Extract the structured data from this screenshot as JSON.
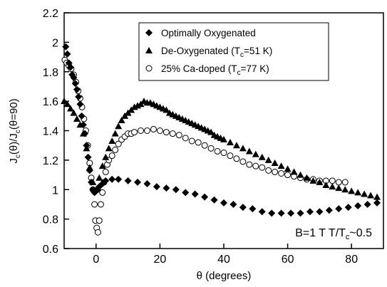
{
  "chart_data": {
    "type": "scatter",
    "xlabel": "θ (degrees)",
    "ylabel_parts": [
      "J",
      "c",
      "(θ)/J",
      "c",
      "(θ=90)"
    ],
    "xlim": [
      -10,
      90
    ],
    "ylim": [
      0.6,
      2.2
    ],
    "x_ticks": [
      0,
      20,
      40,
      60,
      80
    ],
    "y_ticks": [
      0.6,
      0.8,
      1,
      1.2,
      1.4,
      1.6,
      1.8,
      2,
      2.2
    ],
    "x_tick_labels": [
      "0",
      "20",
      "40",
      "60",
      "80"
    ],
    "y_tick_labels": [
      "0.6",
      "0.8",
      "1",
      "1.2",
      "1.4",
      "1.6",
      "1.8",
      "2",
      "2.2"
    ],
    "grid": false,
    "legend_position": "top-right",
    "annotation_parts": [
      "B=1 T  T/T",
      "c",
      "~0.5"
    ],
    "series": [
      {
        "name_parts": [
          "Optimally Oxygenated"
        ],
        "marker": "diamond",
        "color": "#000000",
        "points": [
          [
            -9.5,
            1.97
          ],
          [
            -9,
            1.92
          ],
          [
            -8.5,
            1.86
          ],
          [
            -8,
            1.83
          ],
          [
            -7.5,
            1.78
          ],
          [
            -7,
            1.76
          ],
          [
            -6.5,
            1.72
          ],
          [
            -6,
            1.68
          ],
          [
            -5.5,
            1.63
          ],
          [
            -5,
            1.58
          ],
          [
            -4.5,
            1.5
          ],
          [
            -4,
            1.44
          ],
          [
            -3.5,
            1.38
          ],
          [
            -3,
            1.3
          ],
          [
            -2.5,
            1.22
          ],
          [
            -2,
            1.13
          ],
          [
            -1.5,
            1.05
          ],
          [
            -1,
            1.0
          ],
          [
            -0.5,
            0.98
          ],
          [
            0,
            0.99
          ],
          [
            0.5,
            1.0
          ],
          [
            1,
            1.02
          ],
          [
            2,
            1.04
          ],
          [
            3,
            1.06
          ],
          [
            5,
            1.07
          ],
          [
            7,
            1.07
          ],
          [
            10,
            1.06
          ],
          [
            13,
            1.05
          ],
          [
            16,
            1.04
          ],
          [
            19,
            1.02
          ],
          [
            22,
            1.01
          ],
          [
            25,
            1.0
          ],
          [
            28,
            0.98
          ],
          [
            31,
            0.97
          ],
          [
            34,
            0.95
          ],
          [
            37,
            0.93
          ],
          [
            40,
            0.91
          ],
          [
            43,
            0.9
          ],
          [
            46,
            0.88
          ],
          [
            49,
            0.87
          ],
          [
            52,
            0.85
          ],
          [
            55,
            0.84
          ],
          [
            58,
            0.84
          ],
          [
            61,
            0.84
          ],
          [
            64,
            0.84
          ],
          [
            67,
            0.85
          ],
          [
            70,
            0.85
          ],
          [
            73,
            0.86
          ],
          [
            76,
            0.87
          ],
          [
            79,
            0.88
          ],
          [
            82,
            0.89
          ],
          [
            85,
            0.9
          ],
          [
            88,
            0.91
          ]
        ]
      },
      {
        "name_parts": [
          "De-Oxygenated (T",
          "c",
          "=51 K)"
        ],
        "marker": "triangle",
        "color": "#000000",
        "points": [
          [
            -10,
            1.6
          ],
          [
            -9,
            1.58
          ],
          [
            -8,
            1.55
          ],
          [
            -7,
            1.52
          ],
          [
            -6,
            1.48
          ],
          [
            -5,
            1.44
          ],
          [
            -4,
            1.38
          ],
          [
            -3,
            1.28
          ],
          [
            -2,
            1.15
          ],
          [
            -1,
            1.05
          ],
          [
            0,
            1.0
          ],
          [
            1,
            1.08
          ],
          [
            2,
            1.16
          ],
          [
            3,
            1.22
          ],
          [
            4,
            1.28
          ],
          [
            5,
            1.33
          ],
          [
            6,
            1.38
          ],
          [
            7,
            1.43
          ],
          [
            8,
            1.47
          ],
          [
            9,
            1.5
          ],
          [
            10,
            1.52
          ],
          [
            11,
            1.54
          ],
          [
            12,
            1.56
          ],
          [
            13,
            1.57
          ],
          [
            14,
            1.58
          ],
          [
            15,
            1.6
          ],
          [
            16,
            1.59
          ],
          [
            17,
            1.59
          ],
          [
            18,
            1.58
          ],
          [
            19,
            1.57
          ],
          [
            20,
            1.56
          ],
          [
            21,
            1.55
          ],
          [
            22,
            1.54
          ],
          [
            23,
            1.52
          ],
          [
            24,
            1.51
          ],
          [
            25,
            1.5
          ],
          [
            26,
            1.49
          ],
          [
            27,
            1.48
          ],
          [
            28,
            1.47
          ],
          [
            29,
            1.46
          ],
          [
            30,
            1.45
          ],
          [
            31,
            1.44
          ],
          [
            32,
            1.43
          ],
          [
            33,
            1.42
          ],
          [
            34,
            1.41
          ],
          [
            35,
            1.4
          ],
          [
            36,
            1.39
          ],
          [
            37,
            1.37
          ],
          [
            38,
            1.36
          ],
          [
            39,
            1.35
          ],
          [
            40,
            1.34
          ],
          [
            42,
            1.32
          ],
          [
            44,
            1.3
          ],
          [
            46,
            1.28
          ],
          [
            48,
            1.26
          ],
          [
            50,
            1.24
          ],
          [
            52,
            1.22
          ],
          [
            54,
            1.2
          ],
          [
            56,
            1.18
          ],
          [
            58,
            1.16
          ],
          [
            60,
            1.14
          ],
          [
            62,
            1.12
          ],
          [
            64,
            1.1
          ],
          [
            66,
            1.08
          ],
          [
            68,
            1.06
          ],
          [
            70,
            1.05
          ],
          [
            72,
            1.03
          ],
          [
            74,
            1.02
          ],
          [
            76,
            1.01
          ],
          [
            78,
            1.0
          ],
          [
            80,
            0.99
          ],
          [
            82,
            0.98
          ],
          [
            84,
            0.97
          ],
          [
            86,
            0.96
          ],
          [
            88,
            0.95
          ]
        ]
      },
      {
        "name_parts": [
          "25% Ca-doped (T",
          "c",
          "=77 K)"
        ],
        "marker": "circle-open",
        "color": "#000000",
        "points": [
          [
            -9.8,
            1.88
          ],
          [
            -9.2,
            1.86
          ],
          [
            -8.5,
            1.84
          ],
          [
            -7.8,
            1.82
          ],
          [
            -7,
            1.78
          ],
          [
            -6.3,
            1.73
          ],
          [
            -5.6,
            1.67
          ],
          [
            -5,
            1.62
          ],
          [
            -4.4,
            1.56
          ],
          [
            -3.8,
            1.48
          ],
          [
            -3.2,
            1.4
          ],
          [
            -2.6,
            1.3
          ],
          [
            -2,
            1.18
          ],
          [
            -1.5,
            1.08
          ],
          [
            -1,
            1.0
          ],
          [
            -0.5,
            0.9
          ],
          [
            -0.2,
            0.79
          ],
          [
            0.2,
            0.74
          ],
          [
            0.6,
            0.71
          ],
          [
            1,
            0.79
          ],
          [
            1.5,
            0.9
          ],
          [
            2,
            0.98
          ],
          [
            2.5,
            1.05
          ],
          [
            3,
            1.12
          ],
          [
            3.5,
            1.17
          ],
          [
            4,
            1.2
          ],
          [
            5,
            1.23
          ],
          [
            6,
            1.27
          ],
          [
            7,
            1.31
          ],
          [
            8,
            1.34
          ],
          [
            9,
            1.36
          ],
          [
            10,
            1.38
          ],
          [
            11,
            1.38
          ],
          [
            12,
            1.39
          ],
          [
            14,
            1.4
          ],
          [
            16,
            1.4
          ],
          [
            18,
            1.41
          ],
          [
            20,
            1.4
          ],
          [
            22,
            1.39
          ],
          [
            24,
            1.38
          ],
          [
            26,
            1.37
          ],
          [
            28,
            1.35
          ],
          [
            30,
            1.33
          ],
          [
            32,
            1.32
          ],
          [
            34,
            1.3
          ],
          [
            36,
            1.28
          ],
          [
            38,
            1.26
          ],
          [
            40,
            1.25
          ],
          [
            42,
            1.23
          ],
          [
            44,
            1.21
          ],
          [
            46,
            1.19
          ],
          [
            48,
            1.17
          ],
          [
            50,
            1.16
          ],
          [
            52,
            1.15
          ],
          [
            54,
            1.13
          ],
          [
            56,
            1.12
          ],
          [
            58,
            1.11
          ],
          [
            60,
            1.1
          ],
          [
            62,
            1.09
          ],
          [
            64,
            1.08
          ],
          [
            66,
            1.07
          ],
          [
            68,
            1.07
          ],
          [
            70,
            1.06
          ],
          [
            72,
            1.06
          ],
          [
            74,
            1.06
          ],
          [
            76,
            1.05
          ],
          [
            78,
            1.05
          ]
        ]
      }
    ]
  }
}
